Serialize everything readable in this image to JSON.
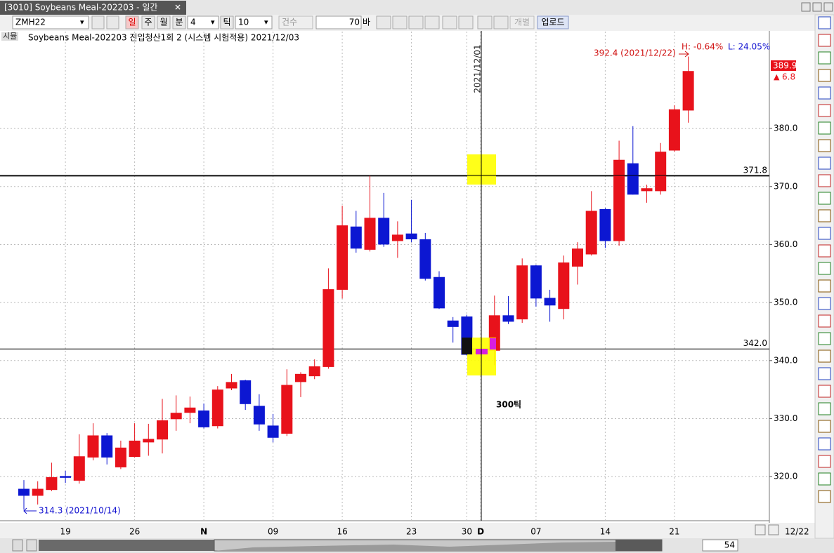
{
  "window": {
    "tab_title": "[3010] Soybeans Meal-202203 - 일간"
  },
  "toolbar": {
    "symbol": "ZMH22",
    "periods": [
      "일",
      "주",
      "월",
      "분"
    ],
    "minute_value": 4,
    "tick_label": "틱",
    "tick_value": 10,
    "count_label": "건수",
    "count_value": 70,
    "bar_label": "바",
    "individual": "개별",
    "upload": "업로드"
  },
  "panel_tag": "시뮬",
  "scrollbar": {
    "visible_bars": 54,
    "date_label": "12/22"
  },
  "chart_data": {
    "type": "candlestick",
    "title": "Soybeans Meal-202203 진입청산1회 2 (시스템 시험적용) 2021/12/03",
    "categories": [
      null,
      null,
      null,
      "19",
      null,
      null,
      null,
      null,
      "26",
      null,
      null,
      null,
      null,
      "N",
      null,
      null,
      null,
      null,
      "09",
      null,
      null,
      null,
      null,
      "16",
      null,
      null,
      null,
      null,
      "23",
      null,
      null,
      null,
      "30",
      "D",
      null,
      null,
      null,
      "07",
      null,
      null,
      null,
      null,
      "14",
      null,
      null,
      null,
      null,
      "21",
      null
    ],
    "open": [
      317.9,
      316.7,
      317.7,
      320.1,
      319.3,
      323.3,
      327.1,
      321.6,
      323.4,
      325.9,
      326.4,
      329.9,
      331.0,
      331.4,
      328.7,
      335.2,
      336.6,
      332.2,
      328.8,
      327.4,
      336.3,
      337.3,
      338.9,
      352.2,
      363.1,
      359.1,
      364.6,
      360.6,
      361.9,
      360.9,
      354.4,
      346.9,
      347.6,
      341.2,
      341.7,
      347.8,
      347.1,
      356.4,
      350.8,
      348.9,
      356.2,
      358.3,
      366.1,
      360.6,
      374.0,
      369.2,
      369.2,
      376.2,
      383.1
    ],
    "high": [
      319.4,
      319.2,
      322.4,
      321.0,
      327.3,
      329.2,
      327.5,
      326.2,
      329.2,
      329.1,
      333.4,
      334.0,
      333.8,
      332.6,
      335.6,
      337.7,
      336.7,
      334.2,
      330.8,
      338.5,
      338.0,
      340.2,
      355.9,
      366.7,
      365.8,
      371.9,
      368.9,
      364.0,
      367.7,
      362.0,
      355.4,
      347.5,
      347.9,
      342.2,
      351.2,
      351.1,
      357.6,
      356.5,
      352.2,
      358.1,
      360.4,
      369.2,
      366.3,
      377.9,
      380.4,
      370.3,
      377.5,
      384.0,
      392.4
    ],
    "low": [
      314.3,
      315.2,
      317.5,
      318.9,
      318.8,
      322.8,
      322.1,
      321.3,
      323.3,
      323.6,
      324.0,
      327.9,
      329.2,
      328.3,
      328.3,
      334.9,
      331.5,
      327.9,
      325.9,
      327.0,
      333.7,
      336.8,
      338.6,
      350.7,
      358.6,
      358.8,
      359.6,
      357.7,
      360.4,
      353.8,
      348.9,
      343.1,
      340.9,
      340.8,
      339.2,
      346.3,
      346.5,
      349.3,
      346.7,
      347.1,
      353.1,
      358.1,
      359.4,
      359.8,
      368.6,
      367.2,
      368.6,
      376.0,
      381.0
    ],
    "close": [
      316.7,
      317.9,
      319.9,
      319.8,
      323.5,
      327.1,
      323.3,
      325.0,
      326.2,
      326.5,
      329.7,
      331.0,
      331.9,
      328.5,
      335.0,
      336.3,
      332.5,
      329.0,
      326.7,
      335.8,
      337.7,
      339.0,
      352.3,
      363.3,
      359.3,
      364.6,
      360.0,
      361.7,
      360.9,
      354.1,
      349.0,
      345.8,
      341.0,
      341.6,
      347.8,
      346.7,
      356.4,
      350.7,
      349.5,
      356.9,
      359.3,
      365.8,
      360.6,
      374.6,
      368.6,
      369.7,
      376.0,
      383.3,
      389.9
    ],
    "up_color": "#e8121b",
    "down_color": "#0c17d2",
    "ylim": [
      312.4,
      396.7
    ],
    "yticks": [
      {
        "value": 320,
        "label": "320.0"
      },
      {
        "value": 330,
        "label": "330.0"
      },
      {
        "value": 340,
        "label": "340.0"
      },
      {
        "value": 350,
        "label": "350.0"
      },
      {
        "value": 360,
        "label": "360.0"
      },
      {
        "value": 370,
        "label": "370.0"
      },
      {
        "value": 380,
        "label": "380.0"
      }
    ],
    "grid": true,
    "hlines": [
      371.8,
      {
        "value": 342,
        "label": "342.0"
      }
    ],
    "crosshair_label": "2021/12/01",
    "high_label": "392.4 (2021/12/22)",
    "low_label": "314.3 (2021/10/14)",
    "h_pct": "H: -0.64%",
    "l_pct": "L: 24.05%",
    "signal_label": "300틱",
    "last_price": 389.9,
    "change": 6.8
  }
}
